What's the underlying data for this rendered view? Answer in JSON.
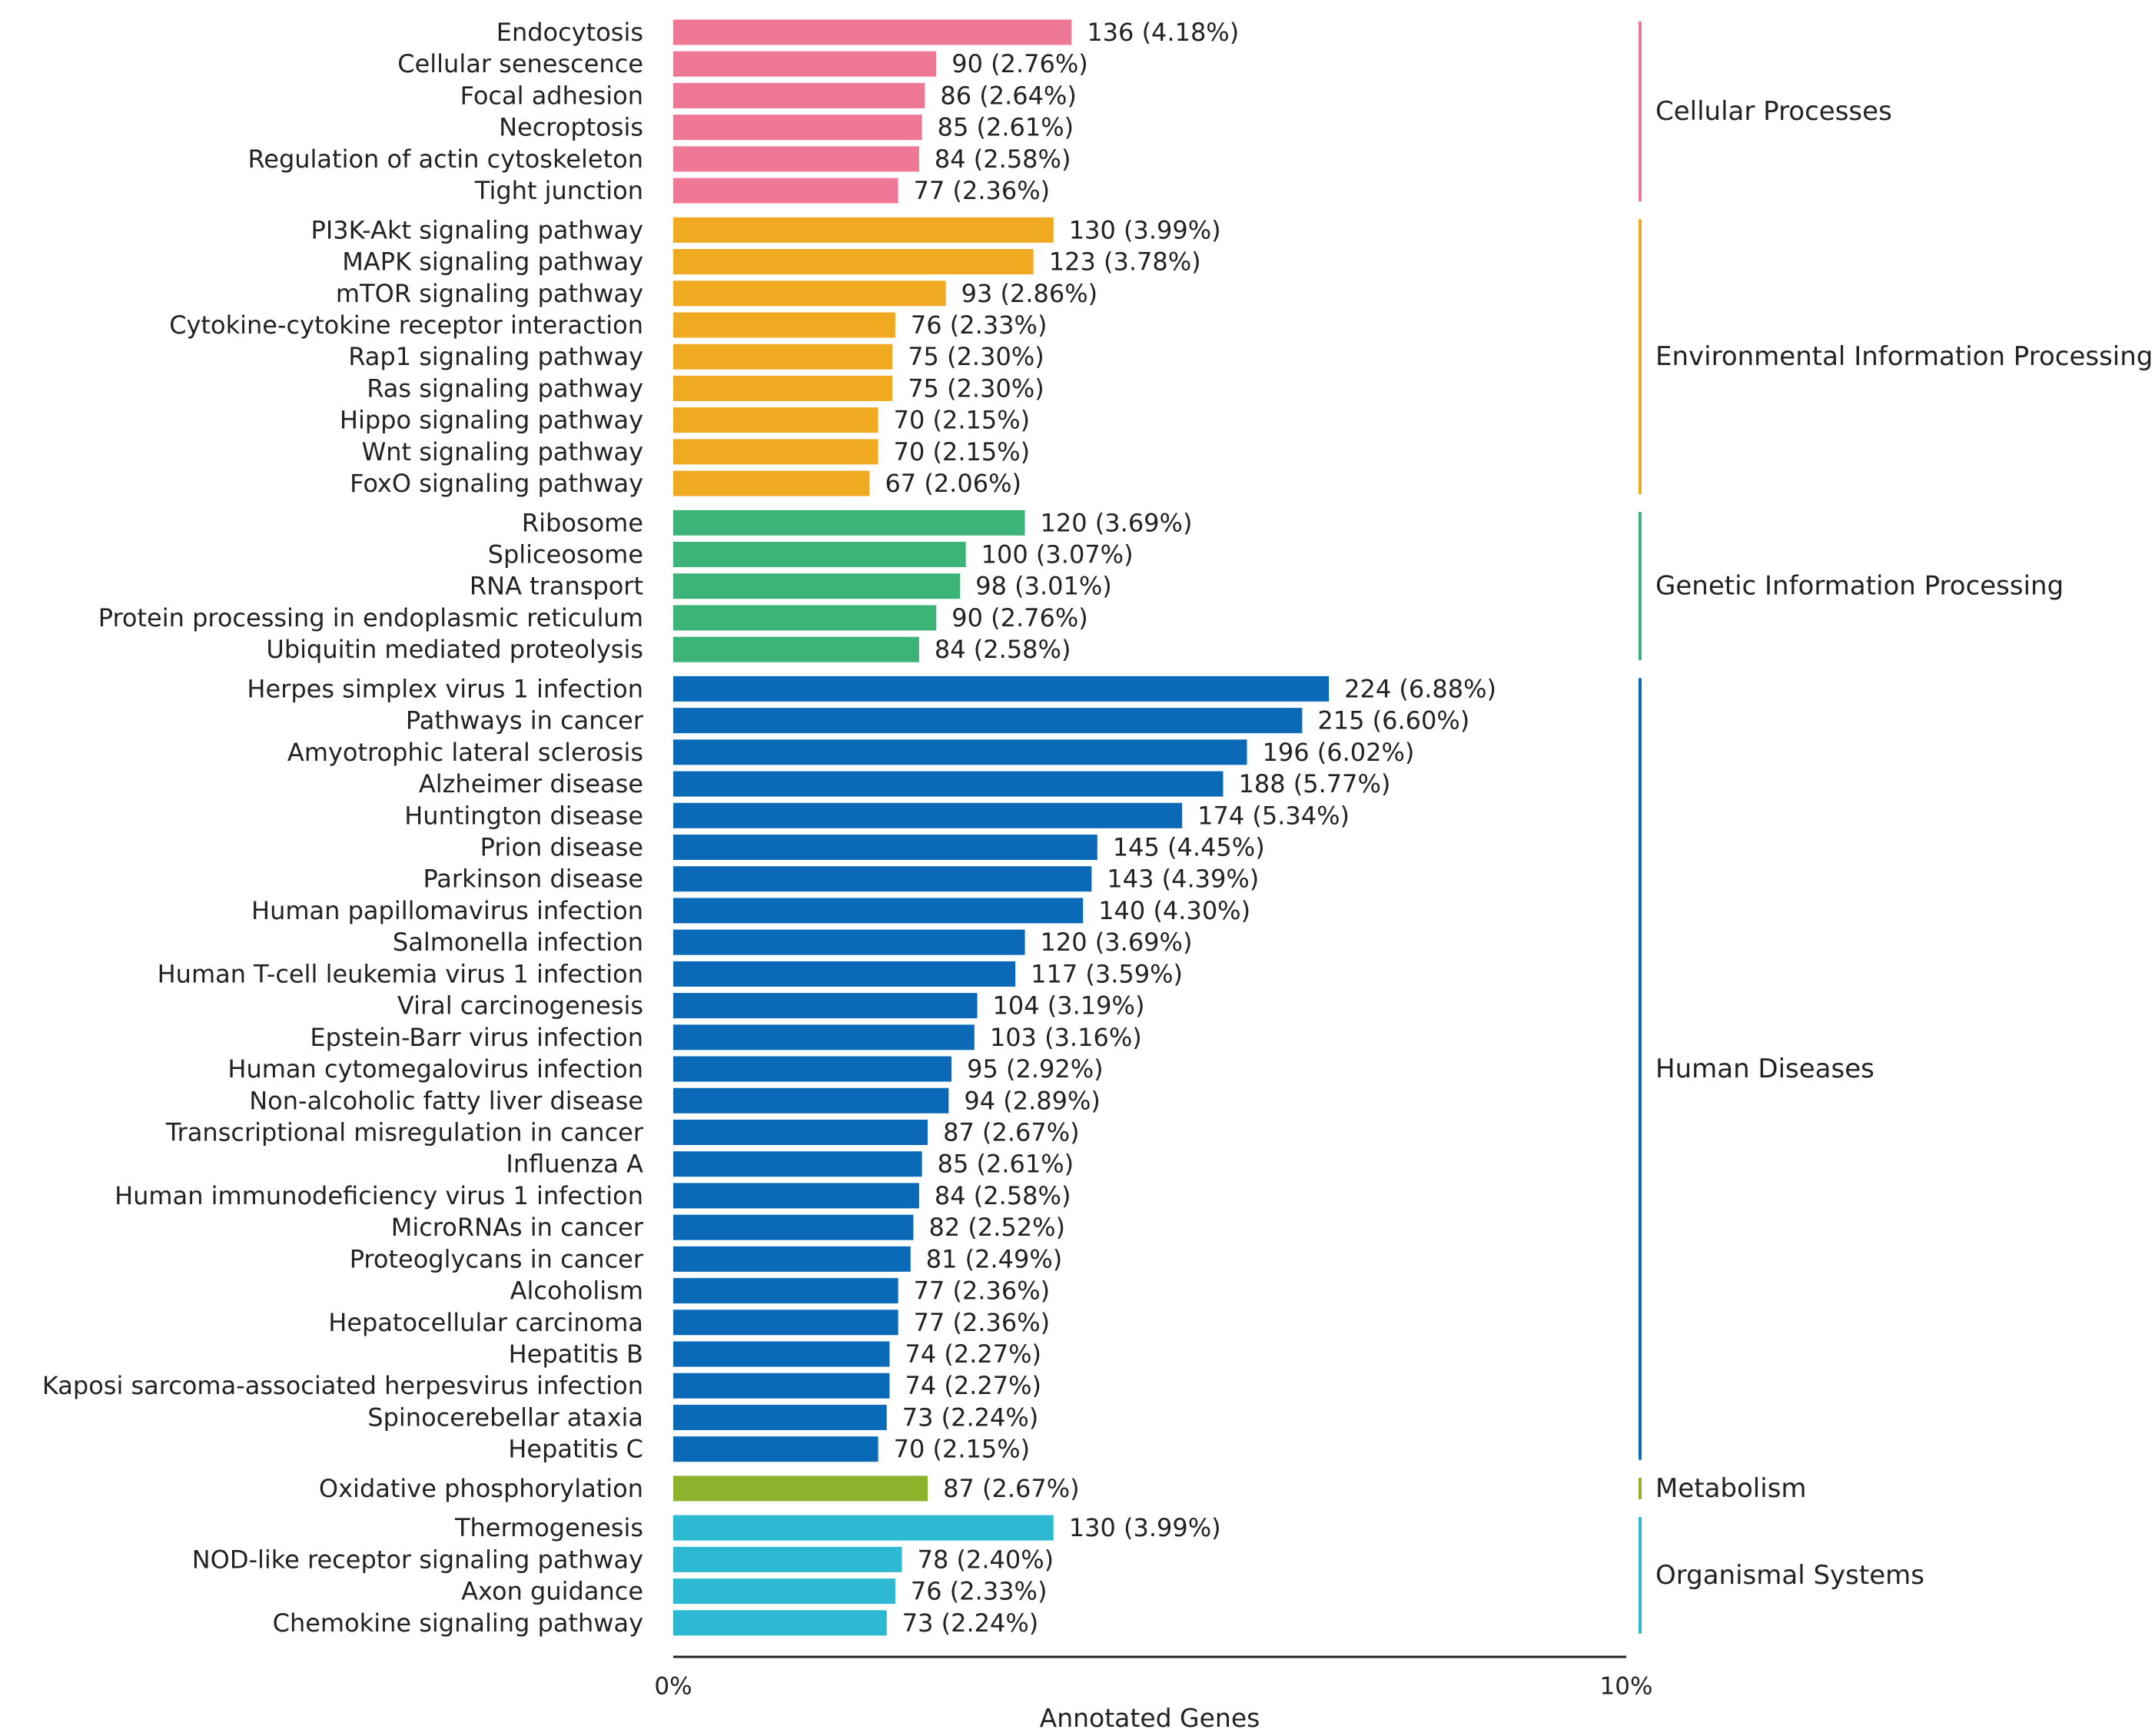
{
  "chart_data": {
    "type": "bar",
    "orientation": "horizontal",
    "xlabel": "Annotated Genes",
    "xlim": [
      0,
      10
    ],
    "x_tick_labels": [
      "0%",
      "10%"
    ],
    "grid": false,
    "legend": "none",
    "groups": [
      {
        "name": "Cellular Processes",
        "color": "#ee7895",
        "items": [
          {
            "label": "Endocytosis",
            "value": 136,
            "percent": 4.18,
            "text": "136 (4.18%)"
          },
          {
            "label": "Cellular senescence",
            "value": 90,
            "percent": 2.76,
            "text": "90 (2.76%)"
          },
          {
            "label": "Focal adhesion",
            "value": 86,
            "percent": 2.64,
            "text": "86 (2.64%)"
          },
          {
            "label": "Necroptosis",
            "value": 85,
            "percent": 2.61,
            "text": "85 (2.61%)"
          },
          {
            "label": "Regulation of actin cytoskeleton",
            "value": 84,
            "percent": 2.58,
            "text": "84 (2.58%)"
          },
          {
            "label": "Tight junction",
            "value": 77,
            "percent": 2.36,
            "text": "77 (2.36%)"
          }
        ]
      },
      {
        "name": "Environmental Information Processing",
        "color": "#f0aa22",
        "items": [
          {
            "label": "PI3K-Akt signaling pathway",
            "value": 130,
            "percent": 3.99,
            "text": "130 (3.99%)"
          },
          {
            "label": "MAPK signaling pathway",
            "value": 123,
            "percent": 3.78,
            "text": "123 (3.78%)"
          },
          {
            "label": "mTOR signaling pathway",
            "value": 93,
            "percent": 2.86,
            "text": "93 (2.86%)"
          },
          {
            "label": "Cytokine-cytokine receptor interaction",
            "value": 76,
            "percent": 2.33,
            "text": "76 (2.33%)"
          },
          {
            "label": "Rap1 signaling pathway",
            "value": 75,
            "percent": 2.3,
            "text": "75 (2.30%)"
          },
          {
            "label": "Ras signaling pathway",
            "value": 75,
            "percent": 2.3,
            "text": "75 (2.30%)"
          },
          {
            "label": "Hippo signaling pathway",
            "value": 70,
            "percent": 2.15,
            "text": "70 (2.15%)"
          },
          {
            "label": "Wnt signaling pathway",
            "value": 70,
            "percent": 2.15,
            "text": "70 (2.15%)"
          },
          {
            "label": "FoxO signaling pathway",
            "value": 67,
            "percent": 2.06,
            "text": "67 (2.06%)"
          }
        ]
      },
      {
        "name": "Genetic Information Processing",
        "color": "#3cb478",
        "items": [
          {
            "label": "Ribosome",
            "value": 120,
            "percent": 3.69,
            "text": "120 (3.69%)"
          },
          {
            "label": "Spliceosome",
            "value": 100,
            "percent": 3.07,
            "text": "100 (3.07%)"
          },
          {
            "label": "RNA transport",
            "value": 98,
            "percent": 3.01,
            "text": "98 (3.01%)"
          },
          {
            "label": "Protein processing in endoplasmic reticulum",
            "value": 90,
            "percent": 2.76,
            "text": "90 (2.76%)"
          },
          {
            "label": "Ubiquitin mediated proteolysis",
            "value": 84,
            "percent": 2.58,
            "text": "84 (2.58%)"
          }
        ]
      },
      {
        "name": "Human Diseases",
        "color": "#0a6ab7",
        "items": [
          {
            "label": "Herpes simplex virus 1 infection",
            "value": 224,
            "percent": 6.88,
            "text": "224 (6.88%)"
          },
          {
            "label": "Pathways in cancer",
            "value": 215,
            "percent": 6.6,
            "text": "215 (6.60%)"
          },
          {
            "label": "Amyotrophic lateral sclerosis",
            "value": 196,
            "percent": 6.02,
            "text": "196 (6.02%)"
          },
          {
            "label": "Alzheimer disease",
            "value": 188,
            "percent": 5.77,
            "text": "188 (5.77%)"
          },
          {
            "label": "Huntington disease",
            "value": 174,
            "percent": 5.34,
            "text": "174 (5.34%)"
          },
          {
            "label": "Prion disease",
            "value": 145,
            "percent": 4.45,
            "text": "145 (4.45%)"
          },
          {
            "label": "Parkinson disease",
            "value": 143,
            "percent": 4.39,
            "text": "143 (4.39%)"
          },
          {
            "label": "Human papillomavirus infection",
            "value": 140,
            "percent": 4.3,
            "text": "140 (4.30%)"
          },
          {
            "label": "Salmonella infection",
            "value": 120,
            "percent": 3.69,
            "text": "120 (3.69%)"
          },
          {
            "label": "Human T-cell leukemia virus 1 infection",
            "value": 117,
            "percent": 3.59,
            "text": "117 (3.59%)"
          },
          {
            "label": "Viral carcinogenesis",
            "value": 104,
            "percent": 3.19,
            "text": "104 (3.19%)"
          },
          {
            "label": "Epstein-Barr virus infection",
            "value": 103,
            "percent": 3.16,
            "text": "103 (3.16%)"
          },
          {
            "label": "Human cytomegalovirus infection",
            "value": 95,
            "percent": 2.92,
            "text": "95 (2.92%)"
          },
          {
            "label": "Non-alcoholic fatty liver disease",
            "value": 94,
            "percent": 2.89,
            "text": "94 (2.89%)"
          },
          {
            "label": "Transcriptional misregulation in cancer",
            "value": 87,
            "percent": 2.67,
            "text": "87 (2.67%)"
          },
          {
            "label": "Influenza A",
            "value": 85,
            "percent": 2.61,
            "text": "85 (2.61%)"
          },
          {
            "label": "Human immunodeficiency virus 1 infection",
            "value": 84,
            "percent": 2.58,
            "text": "84 (2.58%)"
          },
          {
            "label": "MicroRNAs in cancer",
            "value": 82,
            "percent": 2.52,
            "text": "82 (2.52%)"
          },
          {
            "label": "Proteoglycans in cancer",
            "value": 81,
            "percent": 2.49,
            "text": "81 (2.49%)"
          },
          {
            "label": "Alcoholism",
            "value": 77,
            "percent": 2.36,
            "text": "77 (2.36%)"
          },
          {
            "label": "Hepatocellular carcinoma",
            "value": 77,
            "percent": 2.36,
            "text": "77 (2.36%)"
          },
          {
            "label": "Hepatitis B",
            "value": 74,
            "percent": 2.27,
            "text": "74 (2.27%)"
          },
          {
            "label": "Kaposi sarcoma-associated herpesvirus infection",
            "value": 74,
            "percent": 2.27,
            "text": "74 (2.27%)"
          },
          {
            "label": "Spinocerebellar ataxia",
            "value": 73,
            "percent": 2.24,
            "text": "73 (2.24%)"
          },
          {
            "label": "Hepatitis C",
            "value": 70,
            "percent": 2.15,
            "text": "70 (2.15%)"
          }
        ]
      },
      {
        "name": "Metabolism",
        "color": "#8db22c",
        "items": [
          {
            "label": "Oxidative phosphorylation",
            "value": 87,
            "percent": 2.67,
            "text": "87 (2.67%)"
          }
        ]
      },
      {
        "name": "Organismal Systems",
        "color": "#2db9d2",
        "items": [
          {
            "label": "Thermogenesis",
            "value": 130,
            "percent": 3.99,
            "text": "130 (3.99%)"
          },
          {
            "label": "NOD-like receptor signaling pathway",
            "value": 78,
            "percent": 2.4,
            "text": "78 (2.40%)"
          },
          {
            "label": "Axon guidance",
            "value": 76,
            "percent": 2.33,
            "text": "76 (2.33%)"
          },
          {
            "label": "Chemokine signaling pathway",
            "value": 73,
            "percent": 2.24,
            "text": "73 (2.24%)"
          }
        ]
      }
    ]
  }
}
